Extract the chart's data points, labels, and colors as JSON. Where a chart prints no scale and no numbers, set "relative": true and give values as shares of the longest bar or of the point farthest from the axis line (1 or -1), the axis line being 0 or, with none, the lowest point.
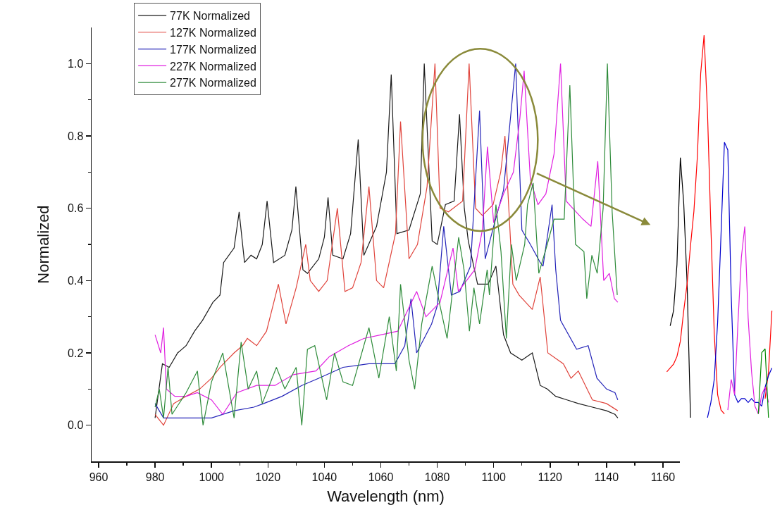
{
  "chart_data": [
    {
      "type": "line",
      "xlabel": "Wavelength (nm)",
      "ylabel": "Normalized",
      "legend": "top left",
      "grid": false,
      "xlim": [
        957.5,
        1166
      ],
      "ylim": [
        -0.1,
        1.1
      ],
      "xticks": [
        960,
        {
          "value": 970,
          "label": null
        },
        980,
        {
          "value": 990,
          "label": null
        },
        1000,
        {
          "value": 1010,
          "label": null
        },
        1020,
        {
          "value": 1030,
          "label": null
        },
        1040,
        {
          "value": 1050,
          "label": null
        },
        1060,
        {
          "value": 1070,
          "label": null
        },
        1080,
        {
          "value": 1090,
          "label": null
        },
        1100,
        {
          "value": 1110,
          "label": null
        },
        1120,
        {
          "value": 1130,
          "label": null
        },
        1140,
        {
          "value": 1150,
          "label": null
        },
        1160
      ],
      "yticks": [
        {
          "value": 0,
          "label": "0.0"
        },
        {
          "value": 0.1,
          "label": null
        },
        {
          "value": 0.2,
          "label": "0.2"
        },
        {
          "value": 0.3,
          "label": null
        },
        {
          "value": 0.4,
          "label": "0.4"
        },
        {
          "value": 0.5,
          "label": null
        },
        {
          "value": 0.6,
          "label": "0.6"
        },
        {
          "value": 0.7,
          "label": null
        },
        {
          "value": 0.8,
          "label": "0.8"
        },
        {
          "value": 0.9,
          "label": null
        },
        {
          "value": 1.0,
          "label": "1.0"
        }
      ],
      "series": [
        {
          "name": "77K Normalized",
          "color": "#1a1a1a",
          "x": [
            980,
            982.6,
            985,
            988,
            991,
            994,
            996.8,
            1000.5,
            1003,
            1004.3,
            1008,
            1009.8,
            1011.7,
            1014,
            1016,
            1018,
            1019.7,
            1022,
            1026,
            1028.5,
            1029.9,
            1032.4,
            1034,
            1038,
            1040,
            1041.3,
            1043,
            1046.6,
            1049.3,
            1052,
            1054,
            1058.5,
            1062,
            1063.7,
            1065.7,
            1070,
            1074,
            1075.4,
            1078.2,
            1080,
            1082.9,
            1086,
            1087.9,
            1089.6,
            1091,
            1094.3,
            1098,
            1100.8,
            1103.5,
            1106,
            1110,
            1113.7,
            1116.5,
            1119,
            1122,
            1126,
            1130,
            1135,
            1140,
            1143,
            1144
          ],
          "values": [
            0.02,
            0.17,
            0.16,
            0.2,
            0.22,
            0.26,
            0.29,
            0.34,
            0.36,
            0.45,
            0.49,
            0.59,
            0.45,
            0.47,
            0.46,
            0.5,
            0.62,
            0.45,
            0.47,
            0.54,
            0.66,
            0.43,
            0.42,
            0.46,
            0.52,
            0.63,
            0.47,
            0.46,
            0.53,
            0.79,
            0.47,
            0.55,
            0.7,
            0.97,
            0.53,
            0.54,
            0.64,
            1.0,
            0.51,
            0.5,
            0.61,
            0.62,
            0.86,
            0.6,
            0.51,
            0.39,
            0.39,
            0.44,
            0.25,
            0.2,
            0.18,
            0.2,
            0.11,
            0.1,
            0.08,
            0.07,
            0.06,
            0.05,
            0.04,
            0.03,
            0.02
          ]
        },
        {
          "name": "127K Normalized",
          "color": "#e0443c",
          "x": [
            980,
            983,
            986.6,
            991,
            995.8,
            1000,
            1003,
            1008,
            1011,
            1012.7,
            1016,
            1019.5,
            1023.7,
            1026.4,
            1030,
            1033.4,
            1035,
            1038,
            1041,
            1044.6,
            1047.3,
            1050,
            1053,
            1055.8,
            1058.5,
            1061,
            1065.2,
            1067,
            1070,
            1073,
            1076.4,
            1079.2,
            1081,
            1084,
            1089,
            1091.3,
            1093.6,
            1096,
            1099.8,
            1102.5,
            1104,
            1106.8,
            1109,
            1113.7,
            1116.5,
            1119.2,
            1124.7,
            1127.4,
            1130,
            1135,
            1140,
            1144
          ],
          "values": [
            0.03,
            0.0,
            0.06,
            0.08,
            0.1,
            0.13,
            0.16,
            0.2,
            0.22,
            0.24,
            0.22,
            0.26,
            0.39,
            0.28,
            0.38,
            0.5,
            0.4,
            0.37,
            0.4,
            0.6,
            0.37,
            0.38,
            0.45,
            0.66,
            0.4,
            0.38,
            0.53,
            0.84,
            0.46,
            0.5,
            0.66,
            1.0,
            0.6,
            0.59,
            0.62,
            1.0,
            0.6,
            0.58,
            0.61,
            0.7,
            0.8,
            0.39,
            0.36,
            0.32,
            0.41,
            0.2,
            0.17,
            0.13,
            0.15,
            0.07,
            0.06,
            0.04
          ]
        },
        {
          "name": "177K Normalized",
          "color": "#2424b8",
          "x": [
            980,
            983,
            991,
            1000,
            1008,
            1015,
            1018.5,
            1025,
            1032,
            1038,
            1046.6,
            1055.8,
            1065,
            1068.5,
            1070.7,
            1072.7,
            1078,
            1080,
            1082.3,
            1085,
            1088,
            1091.8,
            1095,
            1097,
            1100,
            1103.5,
            1107.8,
            1110,
            1113,
            1116.5,
            1117.5,
            1120.7,
            1122,
            1123.7,
            1129.4,
            1133.5,
            1136.6,
            1140,
            1143,
            1144
          ],
          "values": [
            0.06,
            0.02,
            0.02,
            0.02,
            0.04,
            0.05,
            0.06,
            0.08,
            0.11,
            0.13,
            0.16,
            0.17,
            0.17,
            0.22,
            0.35,
            0.2,
            0.28,
            0.33,
            0.55,
            0.36,
            0.37,
            0.44,
            0.87,
            0.46,
            0.55,
            0.65,
            1.0,
            0.54,
            0.5,
            0.45,
            0.44,
            0.61,
            0.43,
            0.29,
            0.21,
            0.22,
            0.13,
            0.1,
            0.09,
            0.07
          ]
        },
        {
          "name": "227K Normalized",
          "color": "#e020e0",
          "x": [
            980,
            982,
            983,
            984,
            987,
            991,
            995,
            1000,
            1004,
            1009,
            1016,
            1022.5,
            1029,
            1037,
            1041.8,
            1048.5,
            1054,
            1060,
            1066,
            1072.7,
            1076,
            1081,
            1085.6,
            1087.5,
            1093.3,
            1096,
            1097.8,
            1100,
            1103.5,
            1107,
            1109.3,
            1110.8,
            1113,
            1115.7,
            1118.5,
            1121.4,
            1123.7,
            1125.7,
            1128,
            1131.6,
            1134.5,
            1136.9,
            1139,
            1141,
            1142.8,
            1144
          ],
          "values": [
            0.25,
            0.2,
            0.27,
            0.1,
            0.08,
            0.08,
            0.09,
            0.07,
            0.03,
            0.09,
            0.11,
            0.11,
            0.14,
            0.15,
            0.19,
            0.22,
            0.24,
            0.25,
            0.26,
            0.37,
            0.3,
            0.34,
            0.49,
            0.37,
            0.43,
            0.54,
            0.77,
            0.56,
            0.64,
            0.7,
            0.85,
            0.98,
            0.68,
            0.61,
            0.64,
            0.75,
            1.0,
            0.62,
            0.6,
            0.57,
            0.55,
            0.73,
            0.4,
            0.42,
            0.35,
            0.34
          ]
        },
        {
          "name": "277K Normalized",
          "color": "#2e8b3a",
          "x": [
            980,
            981.5,
            983,
            984.6,
            986,
            991,
            995,
            997,
            1000,
            1004,
            1008,
            1010.5,
            1013,
            1016,
            1018,
            1023,
            1026,
            1030,
            1032,
            1034,
            1036.6,
            1040.8,
            1043.6,
            1046.6,
            1050,
            1055.8,
            1059.3,
            1063,
            1065.5,
            1067,
            1070,
            1072,
            1074.5,
            1078.2,
            1081,
            1083.5,
            1087.6,
            1089.5,
            1091.4,
            1093,
            1095,
            1097.7,
            1098.5,
            1100.8,
            1102.6,
            1104.5,
            1106.3,
            1108,
            1111,
            1112,
            1114,
            1116,
            1119,
            1121.4,
            1125,
            1127,
            1129,
            1132,
            1133,
            1134.8,
            1136.7,
            1138.8,
            1140.3,
            1142,
            1143.8
          ],
          "values": [
            0.05,
            0.1,
            0.02,
            0.16,
            0.03,
            0.09,
            0.15,
            0.0,
            0.12,
            0.2,
            0.02,
            0.23,
            0.1,
            0.15,
            0.06,
            0.16,
            0.1,
            0.16,
            0.0,
            0.21,
            0.22,
            0.07,
            0.2,
            0.12,
            0.11,
            0.27,
            0.13,
            0.3,
            0.15,
            0.39,
            0.18,
            0.1,
            0.28,
            0.44,
            0.33,
            0.24,
            0.52,
            0.43,
            0.26,
            0.38,
            0.28,
            0.43,
            0.36,
            0.61,
            0.48,
            0.24,
            0.5,
            0.4,
            0.5,
            0.61,
            0.67,
            0.42,
            0.5,
            0.57,
            0.57,
            0.94,
            0.5,
            0.48,
            0.35,
            0.47,
            0.42,
            0.6,
            1.0,
            0.59,
            0.36
          ]
        }
      ]
    },
    {
      "type": "line",
      "relative": true,
      "categories": [
        null,
        null,
        null,
        null,
        null,
        null,
        null,
        null,
        null,
        null,
        null,
        null,
        null,
        null,
        null,
        null,
        null,
        null,
        null,
        null,
        null,
        null,
        null,
        null,
        null,
        null,
        null,
        null,
        null,
        null,
        null,
        null
      ],
      "series": [
        {
          "color": "#000000",
          "values": [
            null,
            0.24,
            0.28,
            0.4,
            0.68,
            0.56,
            0.35,
            0.0,
            null,
            null,
            null,
            null,
            null,
            null,
            null,
            null,
            null,
            null,
            null,
            null,
            null,
            null,
            null,
            null,
            null,
            null,
            null,
            null,
            null,
            null,
            null,
            null
          ]
        },
        {
          "color": "#ff0000",
          "values": [
            0.12,
            0.13,
            0.14,
            0.16,
            0.2,
            0.28,
            0.35,
            0.45,
            0.54,
            0.68,
            0.9,
            1.0,
            0.8,
            0.5,
            0.22,
            0.06,
            0.02,
            0.01,
            null,
            null,
            null,
            null,
            null,
            null,
            null,
            null,
            null,
            null,
            null,
            0.05,
            0.12,
            0.28
          ]
        },
        {
          "color": "#0000cc",
          "values": [
            null,
            null,
            null,
            null,
            null,
            null,
            null,
            null,
            null,
            null,
            null,
            null,
            0.0,
            0.04,
            0.1,
            0.25,
            0.48,
            0.72,
            0.7,
            0.32,
            0.06,
            0.04,
            0.05,
            0.05,
            0.04,
            0.05,
            0.04,
            0.04,
            0.03,
            0.08,
            0.11,
            0.13
          ]
        },
        {
          "color": "#e020e0",
          "values": [
            null,
            null,
            null,
            null,
            null,
            null,
            null,
            null,
            null,
            null,
            null,
            null,
            null,
            null,
            null,
            null,
            null,
            null,
            0.02,
            0.1,
            0.06,
            0.25,
            0.42,
            0.5,
            0.26,
            0.12,
            0.03,
            0.01,
            0.06,
            0.08,
            0.04,
            null
          ]
        },
        {
          "color": "#008800",
          "values": [
            null,
            null,
            null,
            null,
            null,
            null,
            null,
            null,
            null,
            null,
            null,
            null,
            null,
            null,
            null,
            null,
            null,
            null,
            null,
            null,
            null,
            null,
            null,
            null,
            null,
            null,
            null,
            0.01,
            0.17,
            0.18,
            0.0,
            null
          ]
        }
      ]
    }
  ]
}
